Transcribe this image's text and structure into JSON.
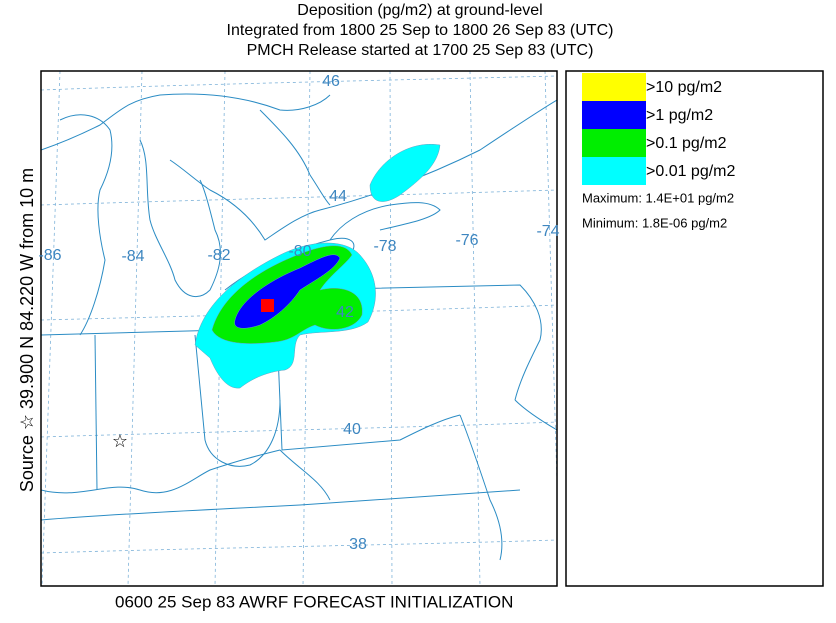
{
  "header": {
    "lines": [
      "Deposition  (pg/m2) at ground-level",
      "Integrated from 1800 25 Sep to 1800 26 Sep 83 (UTC)",
      "PMCH Release started at 1700 25 Sep 83 (UTC)"
    ]
  },
  "legend": {
    "items": [
      {
        "label": ">10 pg/m2",
        "color": "#ffff00"
      },
      {
        "label": ">1 pg/m2",
        "color": "#0000ff"
      },
      {
        "label": ">0.1 pg/m2",
        "color": "#00ee00"
      },
      {
        "label": ">0.01 pg/m2",
        "color": "#00ffff"
      }
    ],
    "maximum": "Maximum: 1.4E+01 pg/m2",
    "minimum": "Minimum: 1.8E-06 pg/m2"
  },
  "map": {
    "source_label": "Source ☆ 39.900 N 84.220 W from 10 m",
    "latitude_labels": [
      "46",
      "44",
      "42",
      "40",
      "38"
    ],
    "longitude_labels": [
      "-86",
      "-84",
      "-82",
      "-80",
      "-78",
      "-76",
      "-74"
    ]
  },
  "footer": "0600 25 Sep 83 AWRF FORECAST INITIALIZATION"
}
